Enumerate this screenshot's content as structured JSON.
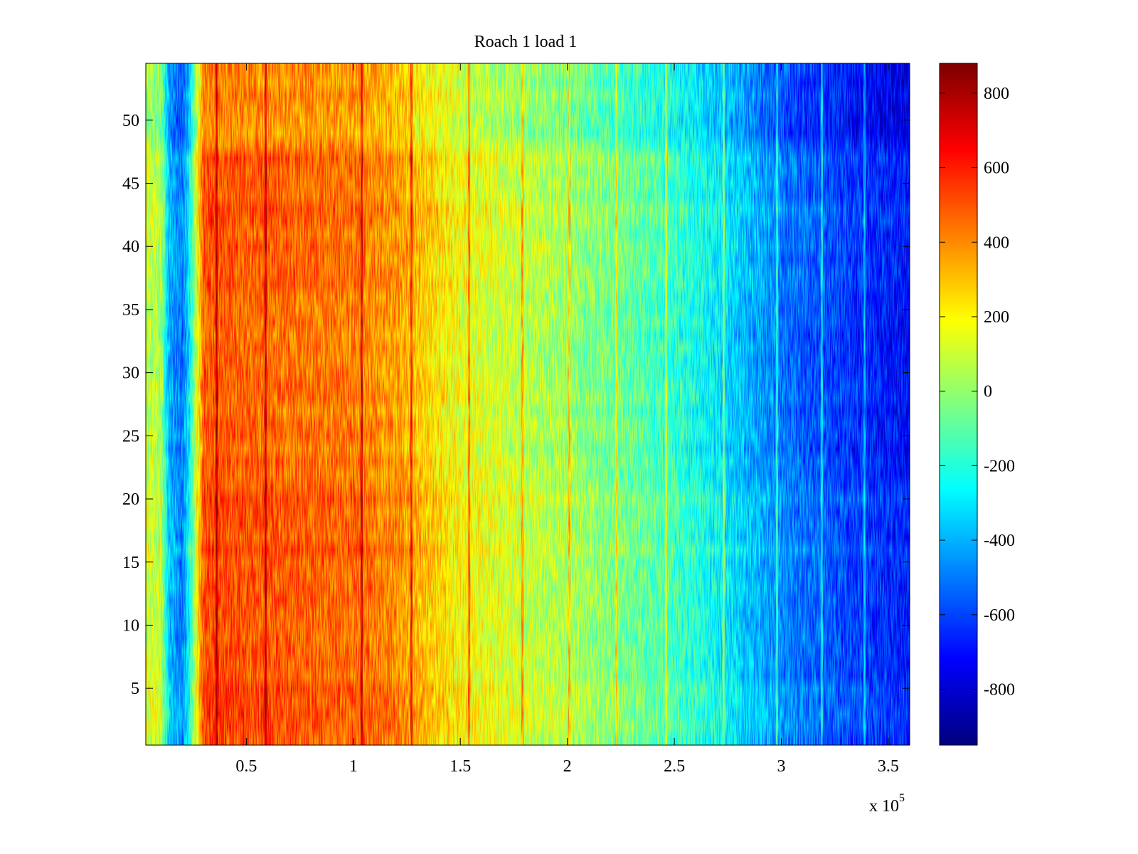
{
  "chart_data": {
    "type": "heatmap",
    "title": "Roach 1 load 1",
    "xlabel": "",
    "ylabel": "",
    "x_multiplier_label": "x 10",
    "x_multiplier_exponent": "5",
    "xlim": [
      0.3,
      36
    ],
    "ylim": [
      0.5,
      54.5
    ],
    "x_tick_values": [
      5,
      10,
      15,
      20,
      25,
      30,
      35
    ],
    "x_tick_labels": [
      "0.5",
      "1",
      "1.5",
      "2",
      "2.5",
      "3",
      "3.5"
    ],
    "y_tick_values": [
      5,
      10,
      15,
      20,
      25,
      30,
      35,
      40,
      45,
      50
    ],
    "y_tick_labels": [
      "5",
      "10",
      "15",
      "20",
      "25",
      "30",
      "35",
      "40",
      "45",
      "50"
    ],
    "colorbar": {
      "colormap": "jet",
      "clim": [
        -950,
        880
      ],
      "tick_values": [
        800,
        600,
        400,
        200,
        0,
        -200,
        -400,
        -600,
        -800
      ],
      "tick_labels": [
        "800",
        "600",
        "400",
        "200",
        "0",
        "-200",
        "-400",
        "-600",
        "-800"
      ]
    },
    "value_profile": {
      "x": [
        0.3,
        1.0,
        1.4,
        2.0,
        2.3,
        3.0,
        5.0,
        8.0,
        10.0,
        12.0,
        13.0,
        15.0,
        18.0,
        20.0,
        22.0,
        24.0,
        26.0,
        28.0,
        30.0,
        32.0,
        34.0,
        36.0
      ],
      "values": [
        100,
        50,
        -400,
        -500,
        -300,
        500,
        480,
        450,
        440,
        380,
        300,
        170,
        80,
        20,
        -50,
        -120,
        -220,
        -350,
        -500,
        -580,
        -650,
        -700
      ]
    },
    "row_band_offsets": [
      {
        "y_range": [
          0.5,
          20.5
        ],
        "offset": 40
      },
      {
        "y_range": [
          20.5,
          23.5
        ],
        "offset": 0
      },
      {
        "y_range": [
          23.5,
          36.5
        ],
        "offset": -20
      },
      {
        "y_range": [
          36.5,
          47.5
        ],
        "offset": 20
      },
      {
        "y_range": [
          47.5,
          54.5
        ],
        "offset": -70
      }
    ],
    "vertical_streaks_x": [
      3.6,
      5.9,
      10.4,
      12.7,
      15.4,
      17.9,
      20.1,
      22.3,
      24.6,
      27.3,
      29.8,
      31.9,
      33.9
    ]
  }
}
